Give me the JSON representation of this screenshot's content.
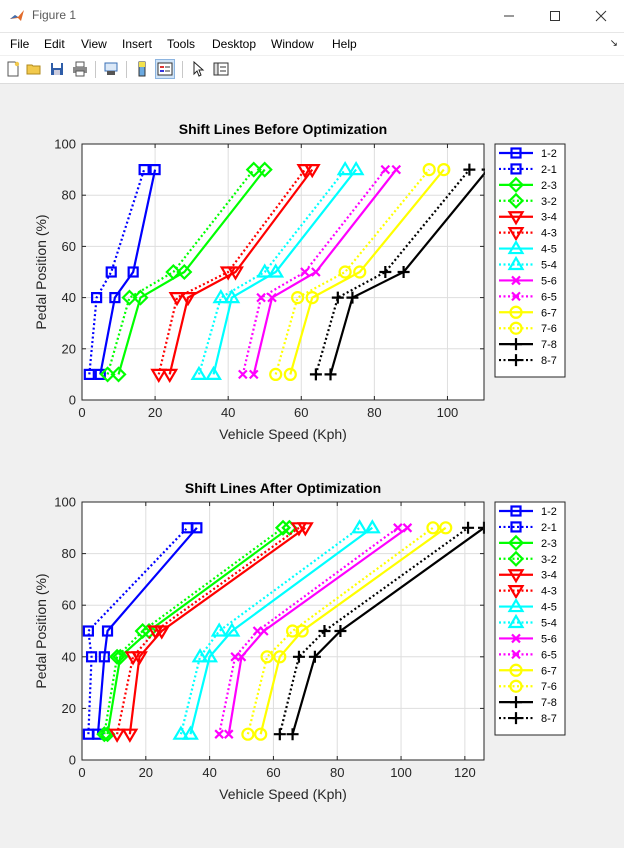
{
  "window": {
    "title": "Figure 1"
  },
  "menu": {
    "items": [
      "File",
      "Edit",
      "View",
      "Insert",
      "Tools",
      "Desktop",
      "Window",
      "Help"
    ],
    "corner": "↘"
  },
  "toolbar": {
    "buttons": [
      "new-figure",
      "open-file",
      "save",
      "print",
      "print-preview",
      "link-plot",
      "property-inspector",
      "edit-plot",
      "plot-browser"
    ]
  },
  "chart_data": [
    {
      "type": "line",
      "title": "Shift Lines Before Optimization",
      "xlabel": "Vehicle Speed (Kph)",
      "ylabel": "Pedal Position (%)",
      "xlim": [
        0,
        110
      ],
      "ylim": [
        0,
        100
      ],
      "xticks": [
        0,
        20,
        40,
        60,
        80,
        100
      ],
      "yticks": [
        0,
        20,
        40,
        60,
        80,
        100
      ],
      "grid": true,
      "legend_position": "outside-right",
      "y": [
        10,
        40,
        50,
        90
      ],
      "series": [
        {
          "name": "1-2",
          "color": "#0000ff",
          "style": "solid",
          "marker": "square",
          "x": [
            5,
            9,
            14,
            20
          ]
        },
        {
          "name": "2-1",
          "color": "#0000ff",
          "style": "dotted",
          "marker": "square",
          "x": [
            2,
            4,
            8,
            17
          ]
        },
        {
          "name": "2-3",
          "color": "#00ff00",
          "style": "solid",
          "marker": "diamond",
          "x": [
            10,
            16,
            28,
            50
          ]
        },
        {
          "name": "3-2",
          "color": "#00ff00",
          "style": "dotted",
          "marker": "diamond",
          "x": [
            7,
            13,
            25,
            47
          ]
        },
        {
          "name": "3-4",
          "color": "#ff0000",
          "style": "solid",
          "marker": "triangle-down",
          "x": [
            24,
            29,
            42,
            63
          ]
        },
        {
          "name": "4-3",
          "color": "#ff0000",
          "style": "dotted",
          "marker": "triangle-down",
          "x": [
            21,
            26,
            40,
            61
          ]
        },
        {
          "name": "4-5",
          "color": "#00ffff",
          "style": "solid",
          "marker": "triangle-up",
          "x": [
            36,
            41,
            53,
            75
          ]
        },
        {
          "name": "5-4",
          "color": "#00ffff",
          "style": "dotted",
          "marker": "triangle-up",
          "x": [
            32,
            38,
            50,
            72
          ]
        },
        {
          "name": "5-6",
          "color": "#ff00ff",
          "style": "solid",
          "marker": "x",
          "x": [
            47,
            52,
            64,
            86
          ]
        },
        {
          "name": "6-5",
          "color": "#ff00ff",
          "style": "dotted",
          "marker": "x",
          "x": [
            44,
            49,
            61,
            83
          ]
        },
        {
          "name": "6-7",
          "color": "#ffff00",
          "style": "solid",
          "marker": "circle",
          "x": [
            57,
            63,
            76,
            99
          ]
        },
        {
          "name": "7-6",
          "color": "#ffff00",
          "style": "dotted",
          "marker": "circle",
          "x": [
            53,
            59,
            72,
            95
          ]
        },
        {
          "name": "7-8",
          "color": "#000000",
          "style": "solid",
          "marker": "plus",
          "x": [
            68,
            74,
            88,
            111
          ]
        },
        {
          "name": "8-7",
          "color": "#000000",
          "style": "dotted",
          "marker": "plus",
          "x": [
            64,
            70,
            83,
            106
          ]
        }
      ]
    },
    {
      "type": "line",
      "title": "Shift Lines After Optimization",
      "xlabel": "Vehicle Speed (Kph)",
      "ylabel": "Pedal Position (%)",
      "xlim": [
        0,
        126
      ],
      "ylim": [
        0,
        100
      ],
      "xticks": [
        0,
        20,
        40,
        60,
        80,
        100,
        120
      ],
      "yticks": [
        0,
        20,
        40,
        60,
        80,
        100
      ],
      "grid": true,
      "legend_position": "outside-right",
      "y": [
        10,
        40,
        50,
        90
      ],
      "series": [
        {
          "name": "1-2",
          "color": "#0000ff",
          "style": "solid",
          "marker": "square",
          "x": [
            5,
            7,
            8,
            36
          ]
        },
        {
          "name": "2-1",
          "color": "#0000ff",
          "style": "dotted",
          "marker": "square",
          "x": [
            2,
            3,
            2,
            33
          ]
        },
        {
          "name": "2-3",
          "color": "#00ff00",
          "style": "solid",
          "marker": "diamond",
          "x": [
            8,
            12,
            21,
            65
          ]
        },
        {
          "name": "3-2",
          "color": "#00ff00",
          "style": "dotted",
          "marker": "diamond",
          "x": [
            7,
            11,
            19,
            63
          ]
        },
        {
          "name": "3-4",
          "color": "#ff0000",
          "style": "solid",
          "marker": "triangle-down",
          "x": [
            15,
            18,
            25,
            70
          ]
        },
        {
          "name": "4-3",
          "color": "#ff0000",
          "style": "dotted",
          "marker": "triangle-down",
          "x": [
            11,
            16,
            23,
            68
          ]
        },
        {
          "name": "4-5",
          "color": "#00ffff",
          "style": "solid",
          "marker": "triangle-up",
          "x": [
            34,
            40,
            47,
            91
          ]
        },
        {
          "name": "5-4",
          "color": "#00ffff",
          "style": "dotted",
          "marker": "triangle-up",
          "x": [
            31,
            37,
            43,
            87
          ]
        },
        {
          "name": "5-6",
          "color": "#ff00ff",
          "style": "solid",
          "marker": "x",
          "x": [
            46,
            50,
            57,
            102
          ]
        },
        {
          "name": "6-5",
          "color": "#ff00ff",
          "style": "dotted",
          "marker": "x",
          "x": [
            43,
            48,
            55,
            99
          ]
        },
        {
          "name": "6-7",
          "color": "#ffff00",
          "style": "solid",
          "marker": "circle",
          "x": [
            56,
            62,
            69,
            114
          ]
        },
        {
          "name": "7-6",
          "color": "#ffff00",
          "style": "dotted",
          "marker": "circle",
          "x": [
            52,
            58,
            66,
            110
          ]
        },
        {
          "name": "7-8",
          "color": "#000000",
          "style": "solid",
          "marker": "plus",
          "x": [
            66,
            73,
            81,
            126
          ]
        },
        {
          "name": "8-7",
          "color": "#000000",
          "style": "dotted",
          "marker": "plus",
          "x": [
            62,
            68,
            76,
            121
          ]
        }
      ]
    }
  ]
}
